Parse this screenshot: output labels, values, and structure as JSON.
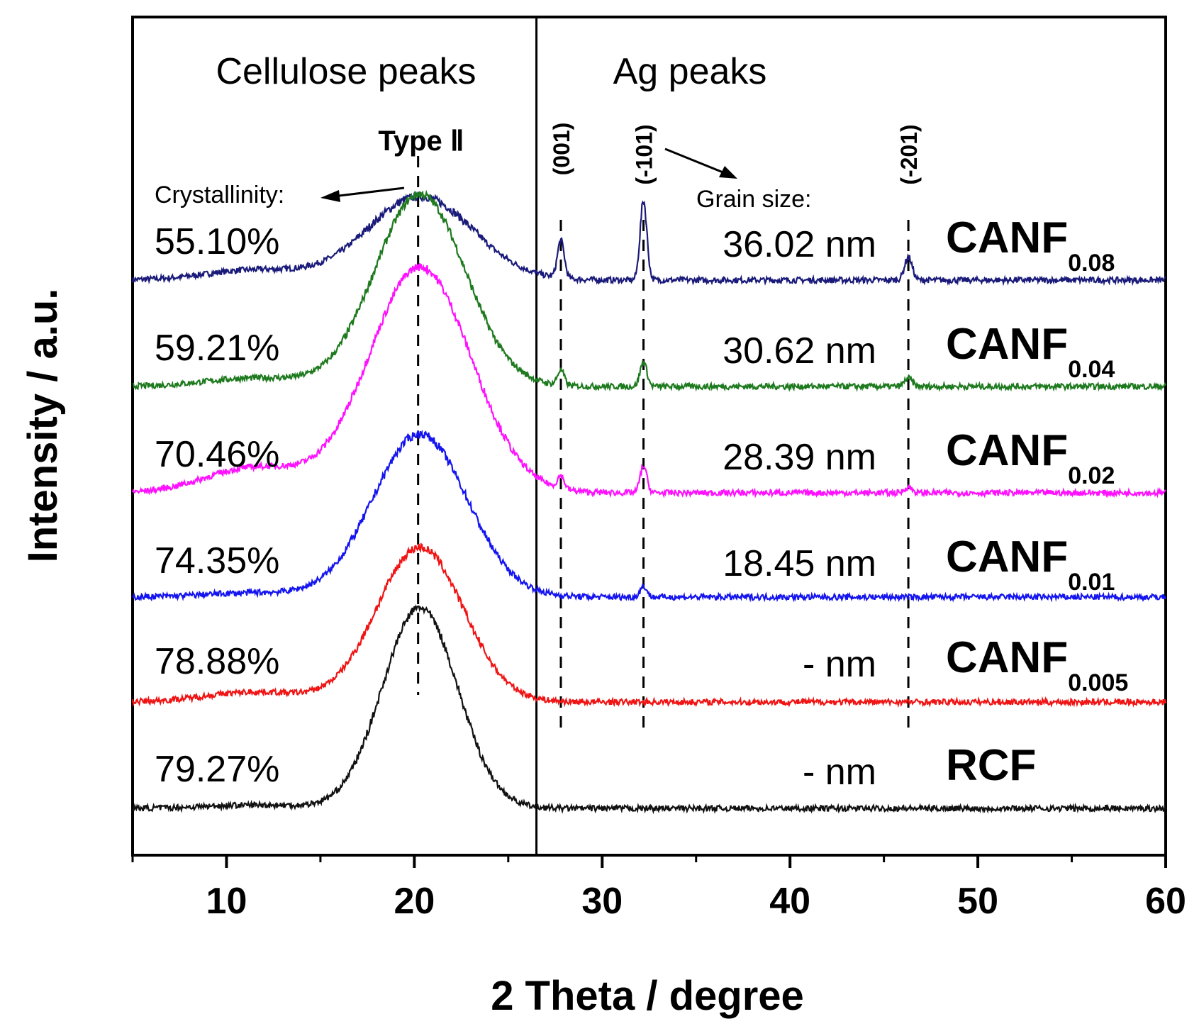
{
  "chart_data": {
    "type": "line",
    "xlabel": "2 Theta / degree",
    "ylabel": "Intensity / a.u.",
    "xlim": [
      5,
      60
    ],
    "xticks": [
      10,
      20,
      30,
      40,
      50,
      60
    ],
    "divider_x": 26.5,
    "region_labels": [
      "Cellulose peaks",
      "Ag peaks"
    ],
    "type_label": "Type Ⅱ",
    "type_peak_x": 20.2,
    "crystallinity_label": "Crystallinity:",
    "grain_label": "Grain size:",
    "peak_planes": [
      {
        "label": "(001)",
        "x": 27.8
      },
      {
        "label": "(-101)",
        "x": 32.2
      },
      {
        "label": "(-201)",
        "x": 46.3
      }
    ],
    "series": [
      {
        "name": "CANF",
        "sub": "0.08",
        "color": "#1a1a7a",
        "baseline": 0.0,
        "broad_amp": 1.0,
        "broad_w": 2.8,
        "hump_amp": 0.12,
        "ag_amps": [
          0.45,
          0.95,
          0.28
        ],
        "crystallinity": "55.10%",
        "grain": "36.02 nm"
      },
      {
        "name": "CANF",
        "sub": "0.04",
        "color": "#1e7a1e",
        "baseline": 0.0,
        "broad_amp": 2.3,
        "broad_w": 2.4,
        "hump_amp": 0.1,
        "ag_amps": [
          0.18,
          0.3,
          0.1
        ],
        "crystallinity": "59.21%",
        "grain": "30.62 nm"
      },
      {
        "name": "CANF",
        "sub": "0.02",
        "color": "#ff10ff",
        "baseline": 0.0,
        "broad_amp": 2.7,
        "broad_w": 2.7,
        "hump_amp": 0.3,
        "ag_amps": [
          0.15,
          0.32,
          0.07
        ],
        "crystallinity": "70.46%",
        "grain": "28.39 nm"
      },
      {
        "name": "CANF",
        "sub": "0.01",
        "color": "#1414f0",
        "baseline": 0.0,
        "broad_amp": 1.95,
        "broad_w": 2.5,
        "hump_amp": 0.05,
        "ag_amps": [
          0.0,
          0.13,
          0.0
        ],
        "crystallinity": "74.35%",
        "grain": "18.45 nm"
      },
      {
        "name": "CANF",
        "sub": "0.005",
        "color": "#f01414",
        "baseline": 0.0,
        "broad_amp": 1.85,
        "broad_w": 2.3,
        "hump_amp": 0.12,
        "ag_amps": [
          0.0,
          0.0,
          0.0
        ],
        "crystallinity": "78.88%",
        "grain": "-    nm"
      },
      {
        "name": "RCF",
        "sub": "",
        "color": "#111111",
        "baseline": 0.0,
        "broad_amp": 2.4,
        "broad_w": 2.0,
        "hump_amp": 0.04,
        "ag_amps": [
          0.0,
          0.0,
          0.0
        ],
        "crystallinity": "79.27%",
        "grain": "-    nm"
      }
    ]
  }
}
